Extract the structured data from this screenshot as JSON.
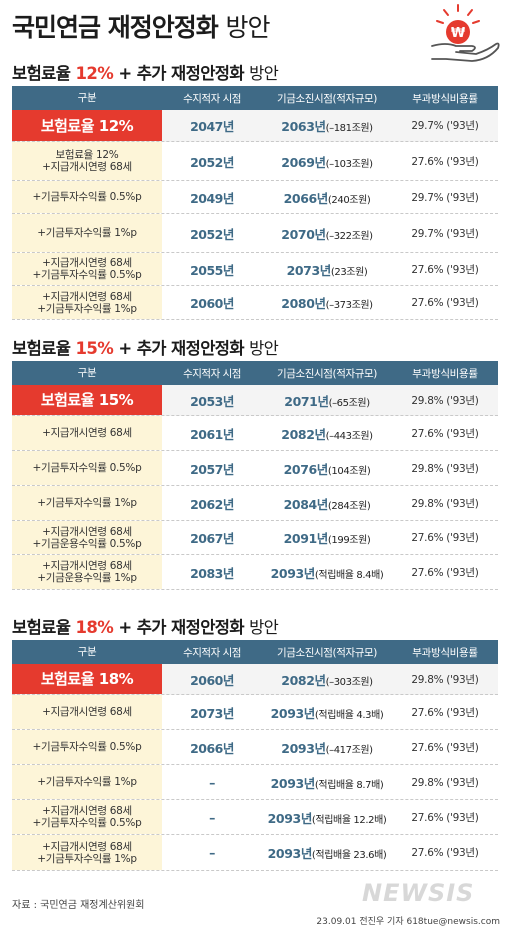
{
  "title": {
    "bold": "국민연금 재정안정화",
    "light": "방안"
  },
  "headers": [
    "구분",
    "수지적자 시점",
    "기금소진시점(적자규모)",
    "부과방식비용률"
  ],
  "colors": {
    "accent": "#e53a2e",
    "header": "#3f6a86",
    "label_bg": "#fdf5d8"
  },
  "sections": [
    {
      "heading": {
        "prefix": "보험료율",
        "pct": "12%",
        "suffix": "+ 추가",
        "tail": "재정안정화",
        "end": "방안"
      },
      "rows": [
        {
          "label": "보험료율 12%",
          "deficit": "2047년",
          "exhaust_year": "2063년",
          "exhaust_note": "(–181조원)",
          "cost": "29.7% ('93년)",
          "base": true
        },
        {
          "label": "보험료율 12%\n+지급개시연령 68세",
          "deficit": "2052년",
          "exhaust_year": "2069년",
          "exhaust_note": "(–103조원)",
          "cost": "27.6% ('93년)"
        },
        {
          "label": "+기금투자수익률 0.5%p",
          "deficit": "2049년",
          "exhaust_year": "2066년",
          "exhaust_note": "(240조원)",
          "cost": "29.7% ('93년)"
        },
        {
          "label": "+기금투자수익률 1%p",
          "deficit": "2052년",
          "exhaust_year": "2070년",
          "exhaust_note": "(–322조원)",
          "cost": "29.7% ('93년)"
        },
        {
          "label": "+지급개시연령 68세\n+기금투자수익률 0.5%p",
          "deficit": "2055년",
          "exhaust_year": "2073년",
          "exhaust_note": "(23조원)",
          "cost": "27.6% ('93년)"
        },
        {
          "label": "+지급개시연령 68세\n+기금투자수익률 1%p",
          "deficit": "2060년",
          "exhaust_year": "2080년",
          "exhaust_note": "(–373조원)",
          "cost": "27.6% ('93년)"
        }
      ]
    },
    {
      "heading": {
        "prefix": "보험료율",
        "pct": "15%",
        "suffix": "+ 추가",
        "tail": "재정안정화",
        "end": "방안"
      },
      "rows": [
        {
          "label": "보험료율 15%",
          "deficit": "2053년",
          "exhaust_year": "2071년",
          "exhaust_note": "(–65조원)",
          "cost": "29.8% ('93년)",
          "base": true
        },
        {
          "label": "+지급개시연령 68세",
          "deficit": "2061년",
          "exhaust_year": "2082년",
          "exhaust_note": "(–443조원)",
          "cost": "27.6% ('93년)"
        },
        {
          "label": "+기금투자수익률 0.5%p",
          "deficit": "2057년",
          "exhaust_year": "2076년",
          "exhaust_note": "(104조원)",
          "cost": "29.8% ('93년)"
        },
        {
          "label": "+기금투자수익률 1%p",
          "deficit": "2062년",
          "exhaust_year": "2084년",
          "exhaust_note": "(284조원)",
          "cost": "29.8% ('93년)"
        },
        {
          "label": "+지급개시연령 68세\n+기금운용수익률 0.5%p",
          "deficit": "2067년",
          "exhaust_year": "2091년",
          "exhaust_note": "(199조원)",
          "cost": "27.6% ('93년)"
        },
        {
          "label": "+지급개시연령 68세\n+기금운용수익률 1%p",
          "deficit": "2083년",
          "exhaust_year": "2093년",
          "exhaust_note": "(적립배율 8.4배)",
          "cost": "27.6% ('93년)"
        }
      ]
    },
    {
      "heading": {
        "prefix": "보험료율",
        "pct": "18%",
        "suffix": "+ 추가",
        "tail": "재정안정화",
        "end": "방안"
      },
      "rows": [
        {
          "label": "보험료율 18%",
          "deficit": "2060년",
          "exhaust_year": "2082년",
          "exhaust_note": "(–303조원)",
          "cost": "29.8% ('93년)",
          "base": true
        },
        {
          "label": "+지급개시연령 68세",
          "deficit": "2073년",
          "exhaust_year": "2093년",
          "exhaust_note": "(적립배율 4.3배)",
          "cost": "27.6% ('93년)"
        },
        {
          "label": "+기금투자수익률 0.5%p",
          "deficit": "2066년",
          "exhaust_year": "2093년",
          "exhaust_note": "(–417조원)",
          "cost": "27.6% ('93년)"
        },
        {
          "label": "+기금투자수익률 1%p",
          "deficit": "–",
          "exhaust_year": "2093년",
          "exhaust_note": "(적립배율 8.7배)",
          "cost": "29.8% ('93년)"
        },
        {
          "label": "+지급개시연령 68세\n+기금투자수익률 0.5%p",
          "deficit": "–",
          "exhaust_year": "2093년",
          "exhaust_note": "(적립배율 12.2배)",
          "cost": "27.6% ('93년)"
        },
        {
          "label": "+지급개시연령 68세\n+기금투자수익률 1%p",
          "deficit": "–",
          "exhaust_year": "2093년",
          "exhaust_note": "(적립배율 23.6배)",
          "cost": "27.6% ('93년)"
        }
      ]
    }
  ],
  "chart_data": {
    "type": "table",
    "title": "국민연금 재정안정화 방안",
    "columns": [
      "구분",
      "수지적자 시점",
      "기금소진시점(적자규모)",
      "부과방식비용률"
    ]
  },
  "source": "자료 : 국민연금 재정계산위원회",
  "credit": "23.09.01  전진우 기자  618tue@newsis.com",
  "watermark": "NEWSIS"
}
